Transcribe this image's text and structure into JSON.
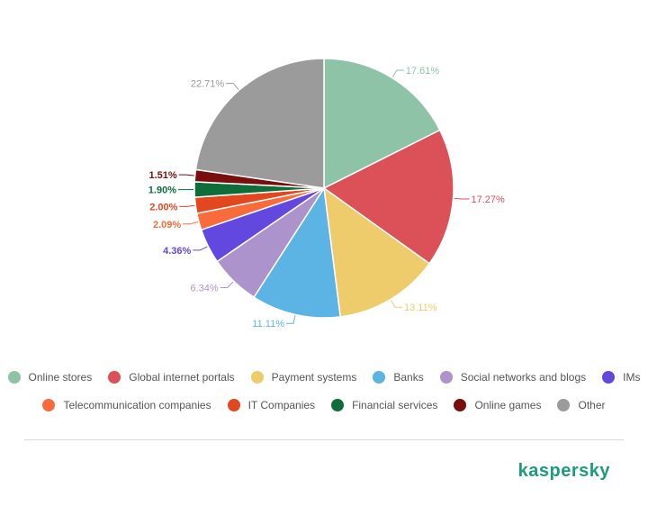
{
  "chart_data": {
    "type": "pie",
    "slices": [
      {
        "label": "Online stores",
        "value": 17.61,
        "value_label": "17.61%",
        "color": "#8ec3a7"
      },
      {
        "label": "Global internet portals",
        "value": 17.27,
        "value_label": "17.27%",
        "color": "#dc5157"
      },
      {
        "label": "Payment systems",
        "value": 13.11,
        "value_label": "13.11%",
        "color": "#efcc6b"
      },
      {
        "label": "Banks",
        "value": 11.11,
        "value_label": "11.11%",
        "color": "#5cb4e4"
      },
      {
        "label": "Social networks and blogs",
        "value": 6.34,
        "value_label": "6.34%",
        "color": "#ad93cb"
      },
      {
        "label": "IMs",
        "value": 4.36,
        "value_label": "4.36%",
        "color": "#6248df"
      },
      {
        "label": "Telecommunication companies",
        "value": 2.09,
        "value_label": "2.09%",
        "color": "#f96b3b"
      },
      {
        "label": "IT Companies",
        "value": 2.0,
        "value_label": "2.00%",
        "color": "#e2471f"
      },
      {
        "label": "Financial services",
        "value": 1.9,
        "value_label": "1.90%",
        "color": "#0f6d3a"
      },
      {
        "label": "Online games",
        "value": 1.51,
        "value_label": "1.51%",
        "color": "#7a0e0e"
      },
      {
        "label": "Other",
        "value": 22.71,
        "value_label": "22.71%",
        "color": "#9b9b9b"
      }
    ],
    "legend_placement": "bottom",
    "legend_rows": [
      [
        "Online stores",
        "Global internet portals",
        "Payment systems",
        "Banks",
        "Social networks and blogs",
        "IMs"
      ],
      [
        "Telecommunication companies",
        "IT Companies",
        "Financial services",
        "Online games",
        "Other"
      ]
    ]
  },
  "brand": {
    "name": "kaspersky",
    "color": "#1a9c7c"
  },
  "divider_color": "#d9d9d9"
}
